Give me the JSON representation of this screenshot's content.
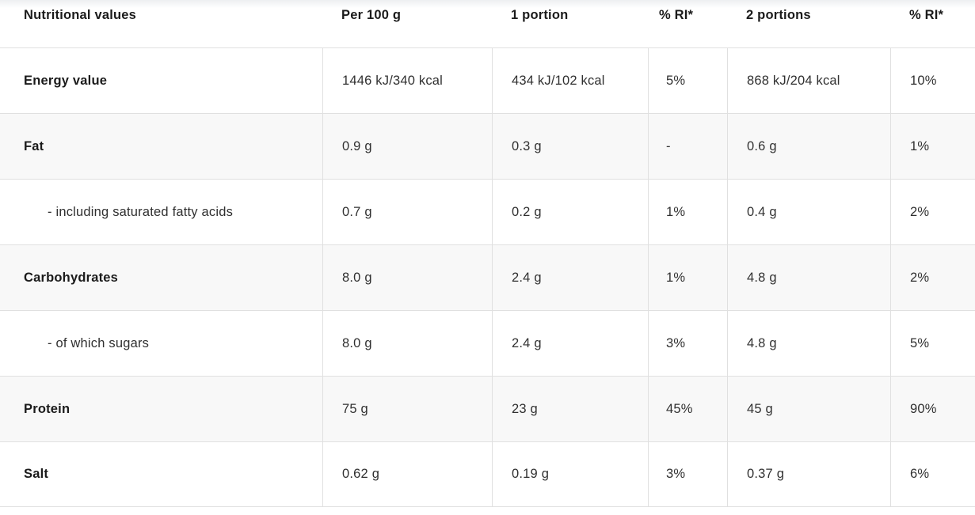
{
  "colors": {
    "page_background": "#ffffff",
    "alt_row_background": "#f8f8f8",
    "border": "#e0e0e0",
    "header_text": "#1b1b1b",
    "value_text": "#303030"
  },
  "table": {
    "columns": [
      "Nutritional values",
      "Per 100 g",
      "1 portion",
      "% RI*",
      "2 portions",
      "% RI*"
    ],
    "rows": [
      {
        "label": "Energy value",
        "values": [
          "1446 kJ/340 kcal",
          "434 kJ/102 kcal",
          "5%",
          "868 kJ/204 kcal",
          "10%"
        ]
      },
      {
        "label": "Fat",
        "values": [
          "0.9 g",
          "0.3 g",
          "-",
          "0.6 g",
          "1%"
        ]
      },
      {
        "label": "- including saturated fatty acids",
        "values": [
          "0.7 g",
          "0.2 g",
          "1%",
          "0.4 g",
          "2%"
        ]
      },
      {
        "label": "Carbohydrates",
        "values": [
          "8.0 g",
          "2.4 g",
          "1%",
          "4.8 g",
          "2%"
        ]
      },
      {
        "label": "- of which sugars",
        "values": [
          "8.0 g",
          "2.4 g",
          "3%",
          "4.8 g",
          "5%"
        ]
      },
      {
        "label": "Protein",
        "values": [
          "75 g",
          "23 g",
          "45%",
          "45 g",
          "90%"
        ]
      },
      {
        "label": "Salt",
        "values": [
          "0.62 g",
          "0.19 g",
          "3%",
          "0.37 g",
          "6%"
        ]
      }
    ]
  }
}
